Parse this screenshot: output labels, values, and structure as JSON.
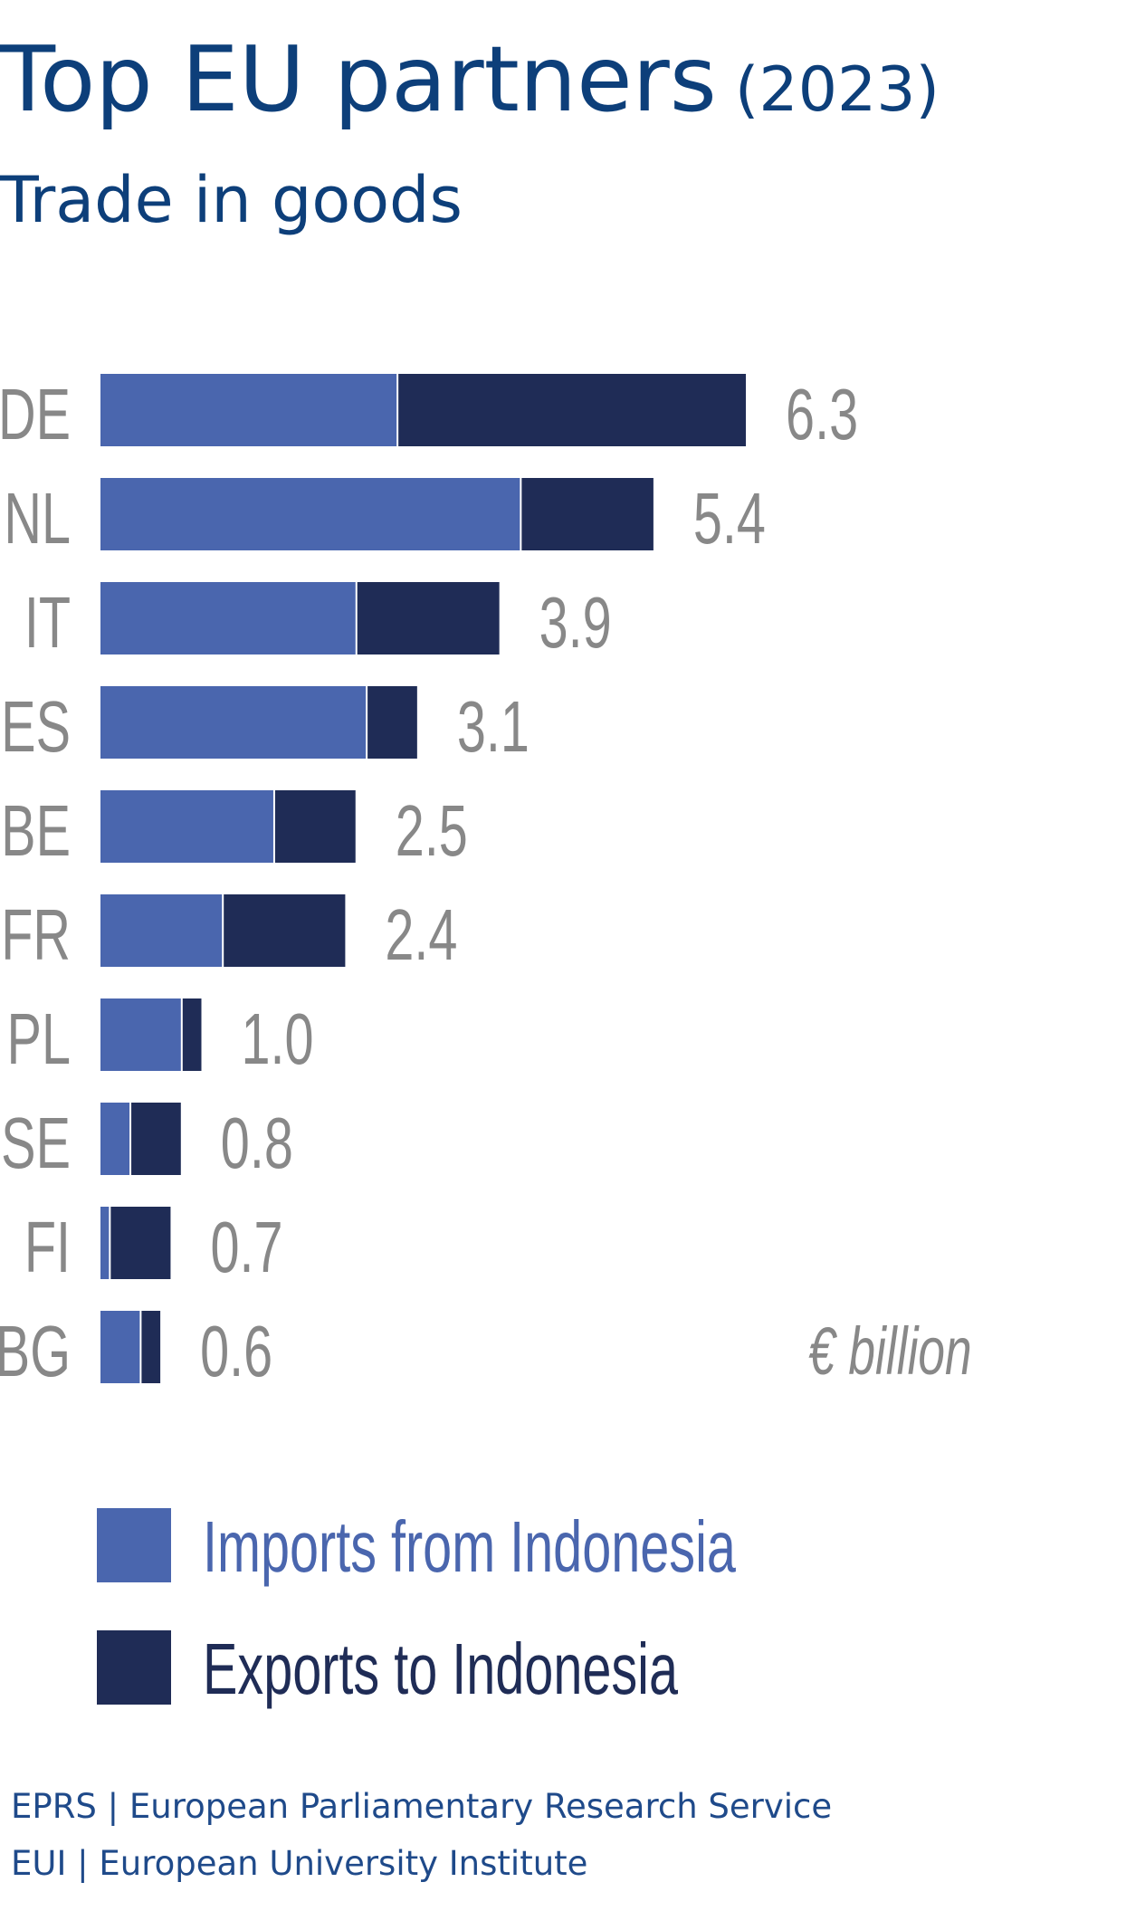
{
  "header": {
    "title": "Top EU partners",
    "title_year": "(2023)",
    "subtitle": "Trade in goods"
  },
  "chart_data": {
    "type": "bar",
    "orientation": "horizontal",
    "stacked": true,
    "categories": [
      "DE",
      "NL",
      "IT",
      "ES",
      "BE",
      "FR",
      "PL",
      "SE",
      "FI",
      "BG"
    ],
    "series": [
      {
        "name": "Imports from Indonesia",
        "color": "#4a66ae",
        "values": [
          2.9,
          4.1,
          2.5,
          2.6,
          1.7,
          1.2,
          0.8,
          0.3,
          0.1,
          0.4
        ]
      },
      {
        "name": "Exports to Indonesia",
        "color": "#1f2c56",
        "values": [
          3.4,
          1.3,
          1.4,
          0.5,
          0.8,
          1.2,
          0.2,
          0.5,
          0.6,
          0.2
        ]
      }
    ],
    "totals": [
      "6.3",
      "5.4",
      "3.9",
      "3.1",
      "2.5",
      "2.4",
      "1.0",
      "0.8",
      "0.7",
      "0.6"
    ],
    "unit": "€ billion",
    "xlim": [
      0,
      6.3
    ],
    "grid": false,
    "legend_position": "bottom-left"
  },
  "footer": {
    "line1": "EPRS | European Parliamentary Research Service",
    "line2": "EUI | European University Institute"
  },
  "colors": {
    "title": "#0d3f7a",
    "labels": "#888888",
    "footer": "#1f4a8a"
  }
}
